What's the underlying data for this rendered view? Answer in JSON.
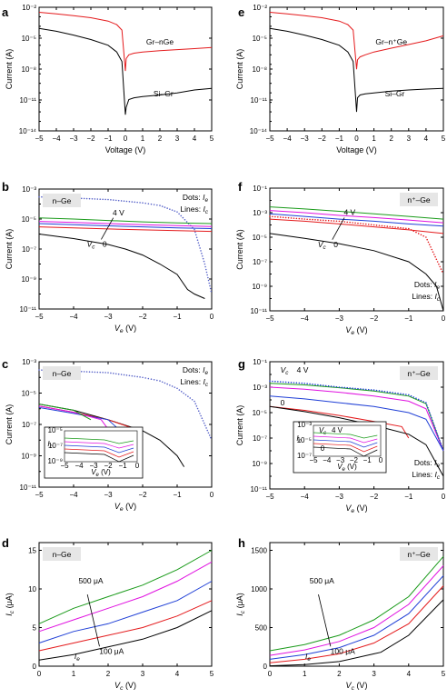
{
  "figure": {
    "panels": [
      "a",
      "b",
      "c",
      "d",
      "e",
      "f",
      "g",
      "h"
    ],
    "colors": {
      "black": "#000000",
      "red": "#e41a1c",
      "blue": "#1f3fd6",
      "magenta": "#e011e0",
      "green": "#1a9a1a",
      "axis": "#000000",
      "box": "#e6e6e6"
    }
  },
  "chart_data": [
    {
      "panel": "a",
      "type": "line",
      "xlabel": "Voltage (V)",
      "ylabel": "Current (A)",
      "xlim": [
        -5,
        5
      ],
      "ylim": [
        1e-14,
        0.1
      ],
      "yscale": "log",
      "xticks": [
        "-5",
        "-4",
        "-3",
        "-2",
        "-1",
        "0",
        "1",
        "2",
        "3",
        "4",
        "5"
      ],
      "yticks": [
        "10⁻¹⁴",
        "10⁻¹¹",
        "10⁻⁸",
        "10⁻⁵",
        "10⁻²"
      ],
      "labels": [
        "Gr–nGe",
        "Si–Gr"
      ],
      "series": [
        {
          "name": "Gr–nGe",
          "color": "red",
          "x": [
            -5,
            -4,
            -3,
            -2,
            -1,
            -0.5,
            -0.2,
            0,
            0.05,
            0.2,
            0.5,
            1,
            2,
            3,
            4,
            5
          ],
          "y": [
            0.03,
            0.02,
            0.013,
            0.008,
            0.0035,
            0.0015,
            0.0004,
            2e-08,
            4e-07,
            1e-06,
            1.5e-06,
            2e-06,
            2.7e-06,
            3.5e-06,
            4.5e-06,
            6e-06
          ]
        },
        {
          "name": "Si–Gr",
          "color": "black",
          "x": [
            -5,
            -4,
            -3,
            -2,
            -1,
            -0.5,
            -0.2,
            0,
            0.05,
            0.2,
            0.5,
            1,
            2,
            3,
            4,
            5
          ],
          "y": [
            0.0006,
            0.0003,
            0.00012,
            4e-05,
            1e-05,
            2e-06,
            2e-07,
            5e-13,
            3e-12,
            2e-11,
            3e-11,
            4e-11,
            6e-11,
            1e-10,
            2e-10,
            3e-10
          ]
        }
      ]
    },
    {
      "panel": "b",
      "type": "line",
      "xlabel": "V_e (V)",
      "ylabel": "Current (A)",
      "xlim": [
        -5,
        0
      ],
      "ylim": [
        1e-11,
        0.001
      ],
      "yscale": "log",
      "xticks": [
        "-5",
        "-4",
        "-3",
        "-2",
        "-1",
        "0"
      ],
      "yticks": [
        "10⁻¹¹",
        "10⁻⁹",
        "10⁻⁷",
        "10⁻⁵",
        "10⁻³"
      ],
      "box_label": "n–Ge",
      "legend": [
        "Dots: I_e",
        "Lines: I_c"
      ],
      "annotations": [
        "4 V",
        "V_c",
        "0"
      ],
      "series": [
        {
          "name": "I_e",
          "style": "dots",
          "x": [
            -5,
            -4,
            -3,
            -2,
            -1.5,
            -1,
            -0.5,
            -0.2,
            0
          ],
          "y": [
            0.0003,
            0.00025,
            0.0002,
            0.00012,
            8e-05,
            3e-05,
            2e-06,
            1e-08,
            1e-10
          ]
        },
        {
          "color": "green",
          "x": [
            -5,
            -4,
            -3,
            -2,
            -1,
            0
          ],
          "y": [
            1.2e-05,
            1e-05,
            8e-06,
            6.5e-06,
            5.5e-06,
            5e-06
          ]
        },
        {
          "color": "magenta",
          "x": [
            -5,
            -4,
            -3,
            -2,
            -1,
            0
          ],
          "y": [
            7e-06,
            6e-06,
            5e-06,
            4.2e-06,
            3.6e-06,
            3.2e-06
          ]
        },
        {
          "color": "blue",
          "x": [
            -5,
            -4,
            -3,
            -2,
            -1,
            0
          ],
          "y": [
            5e-06,
            4.2e-06,
            3.5e-06,
            3e-06,
            2.6e-06,
            2.3e-06
          ]
        },
        {
          "color": "red",
          "x": [
            -5,
            -4,
            -3,
            -2,
            -1,
            0
          ],
          "y": [
            3e-06,
            2.6e-06,
            2.2e-06,
            1.9e-06,
            1.7e-06,
            1.5e-06
          ]
        },
        {
          "color": "black",
          "x": [
            -5,
            -4,
            -3,
            -2.5,
            -2,
            -1.5,
            -1,
            -0.7,
            -0.5,
            -0.2
          ],
          "y": [
            1e-06,
            5e-07,
            2e-07,
            1e-07,
            4e-08,
            1e-08,
            2e-09,
            2e-10,
            1e-10,
            5e-11
          ]
        }
      ]
    },
    {
      "panel": "c",
      "type": "line",
      "xlabel": "V_e (V)",
      "ylabel": "Current (A)",
      "xlim": [
        -5,
        0
      ],
      "ylim": [
        1e-11,
        0.001
      ],
      "yscale": "log",
      "xticks": [
        "-5",
        "-4",
        "-3",
        "-2",
        "-1",
        "0"
      ],
      "yticks": [
        "10⁻¹¹",
        "10⁻⁹",
        "10⁻⁷",
        "10⁻⁵",
        "10⁻³"
      ],
      "box_label": "n–Ge",
      "legend": [
        "Dots: I_e",
        "Lines: I_c"
      ],
      "inset": {
        "ylabel": "I_c",
        "xlabel": "V_e (V)",
        "yticks": [
          "10⁻⁹",
          "10⁻⁷",
          "10⁻⁵"
        ],
        "xticks": [
          "-5",
          "-4",
          "-3",
          "-2",
          "-1",
          "0"
        ]
      },
      "series": [
        {
          "name": "I_e",
          "style": "dots",
          "x": [
            -5,
            -4,
            -3,
            -2,
            -1.5,
            -1,
            -0.5,
            0
          ],
          "y": [
            0.0003,
            0.00025,
            0.0002,
            0.0001,
            6e-05,
            2e-05,
            3e-06,
            1e-08
          ]
        },
        {
          "color": "black",
          "x": [
            -5,
            -4,
            -3,
            -2,
            -1.5,
            -1,
            -0.8
          ],
          "y": [
            2e-06,
            8e-07,
            2e-07,
            4e-08,
            1e-08,
            1e-09,
            2e-10
          ]
        },
        {
          "color": "red",
          "x": [
            -5,
            -4,
            -3,
            -2.2,
            -2
          ],
          "y": [
            1.5e-06,
            6e-07,
            2e-07,
            5e-08,
            1e-08
          ]
        },
        {
          "color": "blue",
          "x": [
            -5,
            -4,
            -3,
            -2.7
          ],
          "y": [
            1.2e-06,
            5e-07,
            2e-07,
            5e-08
          ]
        },
        {
          "color": "magenta",
          "x": [
            -5,
            -4,
            -3.2,
            -3
          ],
          "y": [
            1.5e-06,
            6e-07,
            2e-07,
            5e-08
          ]
        },
        {
          "color": "green",
          "x": [
            -5,
            -4,
            -3.5
          ],
          "y": [
            2e-06,
            8e-07,
            2e-07
          ]
        }
      ]
    },
    {
      "panel": "d",
      "type": "line",
      "xlabel": "V_c (V)",
      "ylabel": "I_c (μA)",
      "xlim": [
        0,
        5
      ],
      "ylim": [
        0,
        16
      ],
      "xticks": [
        "0",
        "1",
        "2",
        "3",
        "4",
        "5"
      ],
      "yticks": [
        "0",
        "5",
        "10",
        "15"
      ],
      "box_label": "n–Ge",
      "annotations": [
        "500 μA",
        "100 μA",
        "I_e"
      ],
      "series": [
        {
          "color": "green",
          "x": [
            0,
            1,
            2,
            3,
            4,
            5
          ],
          "y": [
            5.5,
            7.5,
            9,
            10.5,
            12.5,
            15
          ]
        },
        {
          "color": "magenta",
          "x": [
            0,
            1,
            2,
            3,
            4,
            5
          ],
          "y": [
            4.5,
            6,
            7.5,
            9,
            11,
            13.5
          ]
        },
        {
          "color": "blue",
          "x": [
            0,
            1,
            2,
            3,
            4,
            5
          ],
          "y": [
            3,
            4.5,
            5.5,
            7,
            8.5,
            11
          ]
        },
        {
          "color": "red",
          "x": [
            0,
            1,
            2,
            3,
            4,
            5
          ],
          "y": [
            2,
            3,
            4,
            5,
            6.5,
            8.5
          ]
        },
        {
          "color": "black",
          "x": [
            0,
            1,
            2,
            3,
            4,
            5
          ],
          "y": [
            0.8,
            1.5,
            2.5,
            3.5,
            5,
            7.2
          ]
        }
      ]
    },
    {
      "panel": "e",
      "type": "line",
      "xlabel": "Voltage (V)",
      "ylabel": "Current (A)",
      "xlim": [
        -5,
        5
      ],
      "ylim": [
        1e-14,
        0.1
      ],
      "yscale": "log",
      "xticks": [
        "-5",
        "-4",
        "-3",
        "-2",
        "-1",
        "0",
        "1",
        "2",
        "3",
        "4",
        "5"
      ],
      "yticks": [
        "10⁻¹⁴",
        "10⁻¹¹",
        "10⁻⁸",
        "10⁻⁵",
        "10⁻²"
      ],
      "labels": [
        "Gr–n⁺Ge",
        "Si–Gr"
      ],
      "series": [
        {
          "name": "Gr–n⁺Ge",
          "color": "red",
          "x": [
            -5,
            -4,
            -3,
            -2,
            -1,
            -0.5,
            -0.2,
            0,
            0.05,
            0.2,
            0.5,
            1,
            2,
            3,
            4,
            5
          ],
          "y": [
            0.03,
            0.02,
            0.013,
            0.008,
            0.0035,
            0.0015,
            0.0004,
            3e-08,
            3e-07,
            6e-07,
            1e-06,
            2e-06,
            5e-06,
            1.2e-05,
            3e-05,
            0.0001
          ]
        },
        {
          "name": "Si–Gr",
          "color": "black",
          "x": [
            -5,
            -4,
            -3,
            -2,
            -1,
            -0.5,
            -0.2,
            0,
            0.05,
            0.2,
            0.5,
            1,
            2,
            3,
            4,
            5
          ],
          "y": [
            0.0006,
            0.0003,
            0.00012,
            4e-05,
            1e-05,
            2e-06,
            2e-07,
            1e-12,
            3e-11,
            6e-11,
            8e-11,
            1e-10,
            1.5e-10,
            2e-10,
            2.5e-10,
            3e-10
          ]
        }
      ]
    },
    {
      "panel": "f",
      "type": "line",
      "xlabel": "V_e (V)",
      "ylabel": "Current (A)",
      "xlim": [
        -5,
        0
      ],
      "ylim": [
        1e-11,
        0.1
      ],
      "yscale": "log",
      "xticks": [
        "-5",
        "-4",
        "-3",
        "-2",
        "-1",
        "0"
      ],
      "yticks": [
        "10⁻¹¹",
        "10⁻⁹",
        "10⁻⁷",
        "10⁻⁵",
        "10⁻³",
        "10⁻¹"
      ],
      "box_label": "n⁺–Ge",
      "legend": [
        "Dots: I_e",
        "Lines: I_c"
      ],
      "annotations": [
        "4 V",
        "V_c",
        "0"
      ],
      "series": [
        {
          "color": "green",
          "x": [
            -5,
            -4,
            -3,
            -2,
            -1,
            0
          ],
          "y": [
            0.003,
            0.002,
            0.0013,
            0.0008,
            0.0005,
            0.0003
          ]
        },
        {
          "color": "magenta",
          "x": [
            -5,
            -4,
            -3,
            -2,
            -1,
            0
          ],
          "y": [
            0.0015,
            0.001,
            0.0006,
            0.0004,
            0.00025,
            0.00015
          ]
        },
        {
          "color": "blue",
          "x": [
            -5,
            -4,
            -3,
            -2,
            -1,
            0
          ],
          "y": [
            0.0008,
            0.0005,
            0.0003,
            0.0002,
            0.00012,
            8e-05
          ]
        },
        {
          "color": "red",
          "x": [
            -5,
            -4,
            -3,
            -2,
            -1,
            0
          ],
          "y": [
            0.0003,
            0.0002,
            0.00012,
            7e-05,
            4e-05,
            2e-05
          ]
        },
        {
          "color": "black",
          "x": [
            -5,
            -4,
            -3,
            -2,
            -1,
            -0.5,
            -0.2,
            0
          ],
          "y": [
            2e-05,
            8e-06,
            3e-06,
            8e-07,
            1e-07,
            1e-08,
            1e-09,
            1e-11
          ]
        },
        {
          "name": "I_e",
          "style": "dots",
          "color": "red",
          "x": [
            -5,
            -4,
            -3,
            -2,
            -1,
            -0.5,
            0
          ],
          "y": [
            0.0005,
            0.0003,
            0.0002,
            0.0001,
            5e-05,
            1e-05,
            1e-08
          ]
        }
      ]
    },
    {
      "panel": "g",
      "type": "line",
      "xlabel": "V_e (V)",
      "ylabel": "Current (A)",
      "xlim": [
        -5,
        0
      ],
      "ylim": [
        1e-11,
        0.1
      ],
      "yscale": "log",
      "xticks": [
        "-5",
        "-4",
        "-3",
        "-2",
        "-1",
        "0"
      ],
      "yticks": [
        "10⁻¹¹",
        "10⁻⁹",
        "10⁻⁷",
        "10⁻⁵",
        "10⁻³",
        "10⁻¹"
      ],
      "box_label": "n⁺–Ge",
      "legend": [
        "Dots: I_e",
        "Lines: I_c"
      ],
      "annotations": [
        "V_c",
        "4 V",
        "0"
      ],
      "inset": {
        "ylabel": "I_c",
        "xlabel": "V_e (V)",
        "yticks": [
          "10⁻⁷",
          "10⁻⁵",
          "10⁻³"
        ],
        "xticks": [
          "-5",
          "-4",
          "-3",
          "-2",
          "-1",
          "0"
        ],
        "annotations": [
          "V_c",
          "4 V",
          "0"
        ]
      },
      "series": [
        {
          "color": "green",
          "x": [
            -5,
            -4,
            -3,
            -2,
            -1,
            -0.5,
            0
          ],
          "y": [
            0.002,
            0.0015,
            0.0009,
            0.0005,
            0.0002,
            5e-05,
            1e-08
          ]
        },
        {
          "color": "magenta",
          "x": [
            -5,
            -4,
            -3,
            -2,
            -1,
            -0.5,
            0
          ],
          "y": [
            0.001,
            0.0007,
            0.0004,
            0.0002,
            8e-05,
            2e-05,
            1e-08
          ]
        },
        {
          "color": "blue",
          "x": [
            -5,
            -4,
            -3,
            -2,
            -1,
            -0.5,
            0
          ],
          "y": [
            0.0002,
            0.00012,
            6e-05,
            3e-05,
            1e-05,
            3e-06,
            1e-08
          ]
        },
        {
          "color": "red",
          "x": [
            -5,
            -4,
            -3,
            -2,
            -1.2,
            -1
          ],
          "y": [
            3e-05,
            1.5e-05,
            6e-06,
            2e-06,
            8e-07,
            1e-07
          ]
        },
        {
          "color": "black",
          "x": [
            -5,
            -4,
            -3,
            -2,
            -1,
            -0.5,
            0
          ],
          "y": [
            3e-05,
            1.2e-05,
            4e-06,
            1e-06,
            2e-07,
            3e-08,
            1e-10
          ]
        },
        {
          "name": "I_e",
          "style": "dots",
          "color": "blue",
          "x": [
            -5,
            -4,
            -3,
            -2,
            -1,
            -0.5,
            0
          ],
          "y": [
            0.003,
            0.002,
            0.001,
            0.0006,
            0.00025,
            6e-05,
            1e-08
          ]
        }
      ]
    },
    {
      "panel": "h",
      "type": "line",
      "xlabel": "V_c (V)",
      "ylabel": "I_c (μA)",
      "xlim": [
        0,
        5
      ],
      "ylim": [
        0,
        1600
      ],
      "xticks": [
        "0",
        "1",
        "2",
        "3",
        "4",
        "5"
      ],
      "yticks": [
        "0",
        "500",
        "1000",
        "1500"
      ],
      "box_label": "n⁺–Ge",
      "annotations": [
        "500 μA",
        "100 μA",
        "I_e"
      ],
      "series": [
        {
          "color": "green",
          "x": [
            0,
            1,
            2,
            3,
            4,
            5
          ],
          "y": [
            200,
            280,
            400,
            600,
            900,
            1420
          ]
        },
        {
          "color": "magenta",
          "x": [
            0,
            1,
            2,
            3,
            4,
            5
          ],
          "y": [
            140,
            210,
            320,
            500,
            800,
            1300
          ]
        },
        {
          "color": "blue",
          "x": [
            0,
            1,
            2,
            3,
            4,
            5
          ],
          "y": [
            90,
            150,
            240,
            400,
            680,
            1170
          ]
        },
        {
          "color": "red",
          "x": [
            0,
            1,
            2,
            3,
            4,
            5
          ],
          "y": [
            45,
            90,
            160,
            300,
            550,
            1040
          ]
        },
        {
          "color": "black",
          "x": [
            0,
            1,
            2,
            3,
            3.2,
            4,
            5
          ],
          "y": [
            5,
            20,
            60,
            160,
            180,
            400,
            860
          ]
        }
      ]
    }
  ]
}
